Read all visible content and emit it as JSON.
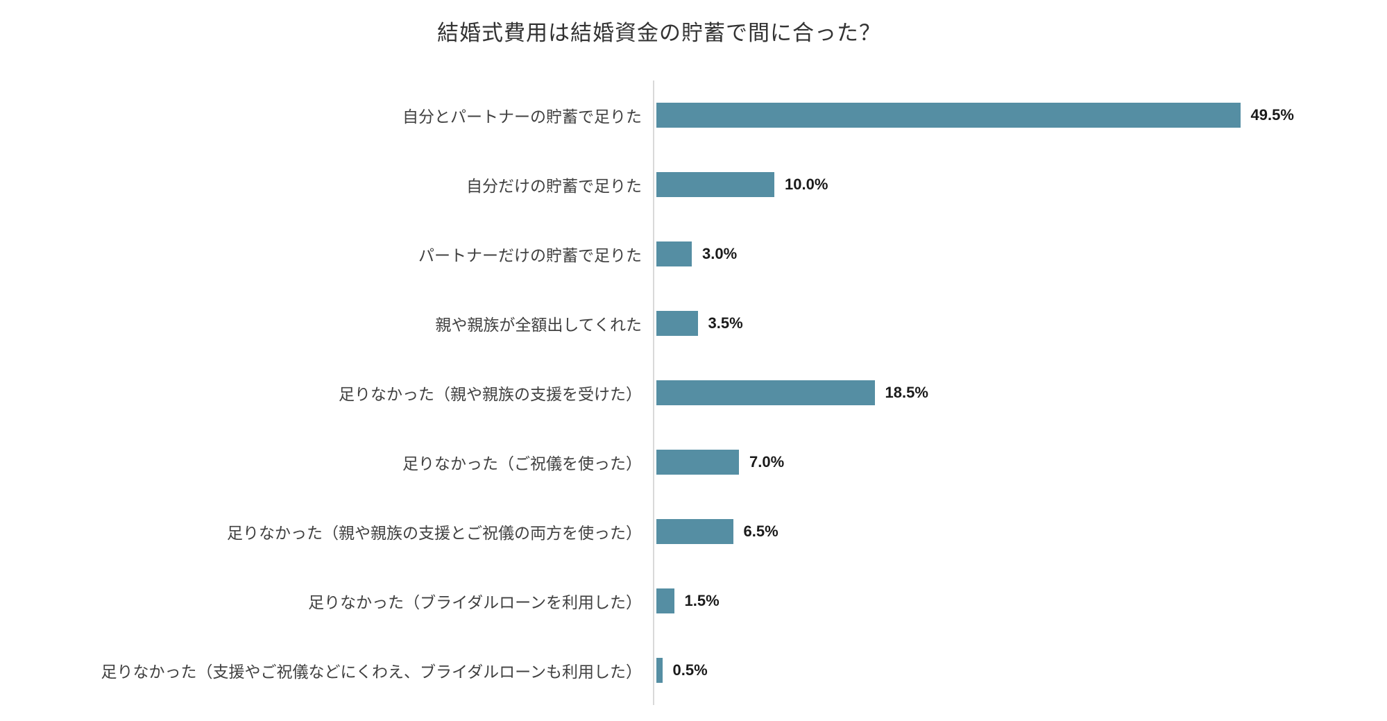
{
  "title": "結婚式費用は結婚資金の貯蓄で間に合った？",
  "colors": {
    "bar": "#558ea3",
    "axis": "#d9d9d9",
    "title_text": "#333333",
    "category_text": "#404040",
    "value_text": "#1a1a1a",
    "background": "#ffffff"
  },
  "chart_data": {
    "type": "bar",
    "orientation": "horizontal",
    "title": "結婚式費用は結婚資金の貯蓄で間に合った？",
    "xlabel": "",
    "ylabel": "",
    "grid": false,
    "legend": null,
    "value_format": "percent_one_decimal",
    "xlim": [
      0,
      55
    ],
    "categories": [
      "自分とパートナーの貯蓄で足りた",
      "自分だけの貯蓄で足りた",
      "パートナーだけの貯蓄で足りた",
      "親や親族が全額出してくれた",
      "足りなかった（親や親族の支援を受けた）",
      "足りなかった（ご祝儀を使った）",
      "足りなかった（親や親族の支援とご祝儀の両方を使った）",
      "足りなかった（ブライダルローンを利用した）",
      "足りなかった（支援やご祝儀などにくわえ、ブライダルローンも利用した）"
    ],
    "values": [
      49.5,
      10.0,
      3.0,
      3.5,
      18.5,
      7.0,
      6.5,
      1.5,
      0.5
    ],
    "value_labels": [
      "49.5%",
      "10.0%",
      "3.0%",
      "3.5%",
      "18.5%",
      "7.0%",
      "6.5%",
      "1.5%",
      "0.5%"
    ]
  }
}
